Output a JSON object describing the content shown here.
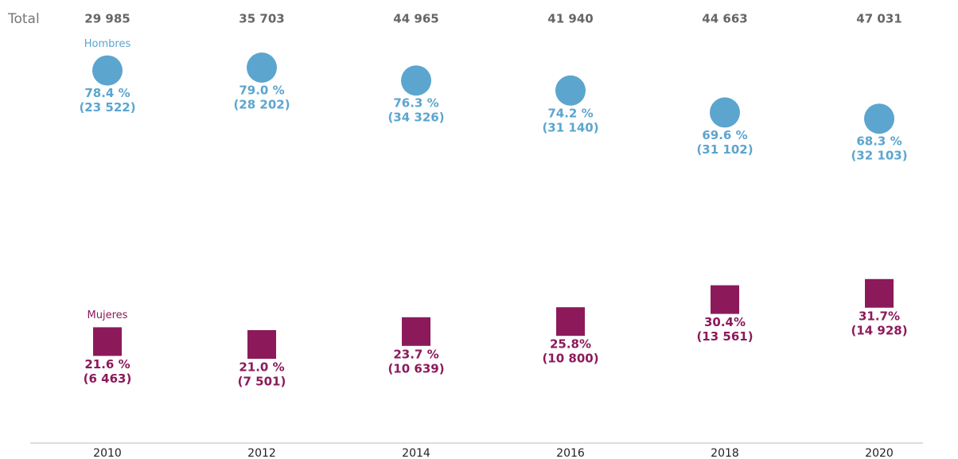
{
  "chart_data": {
    "type": "dot",
    "total_label": "Total",
    "categories": [
      "2010",
      "2012",
      "2014",
      "2016",
      "2018",
      "2020"
    ],
    "totals": [
      "29 985",
      "35 703",
      "44 965",
      "41 940",
      "44 663",
      "47 031"
    ],
    "ylim": [
      0,
      90
    ],
    "series": [
      {
        "name": "Hombres",
        "color": "#5ca5cf",
        "marker": "circle",
        "values": [
          78.4,
          79.0,
          76.3,
          74.2,
          69.6,
          68.3
        ],
        "value_labels": [
          "78.4 %",
          "79.0 %",
          "76.3 %",
          "74.2 %",
          "69.6 %",
          "68.3 %"
        ],
        "counts": [
          "(23 522)",
          "(28 202)",
          "(34 326)",
          "(31 140)",
          "(31 102)",
          "(32 103)"
        ]
      },
      {
        "name": "Mujeres",
        "color": "#8c1a5b",
        "marker": "square",
        "values": [
          21.6,
          21.0,
          23.7,
          25.8,
          30.4,
          31.7
        ],
        "value_labels": [
          "21.6 %",
          "21.0 %",
          "23.7 %",
          "25.8%",
          "30.4%",
          "31.7%"
        ],
        "counts": [
          "(6 463)",
          "(7 501)",
          "(10 639)",
          "(10 800)",
          "(13 561)",
          "(14 928)"
        ]
      }
    ]
  }
}
